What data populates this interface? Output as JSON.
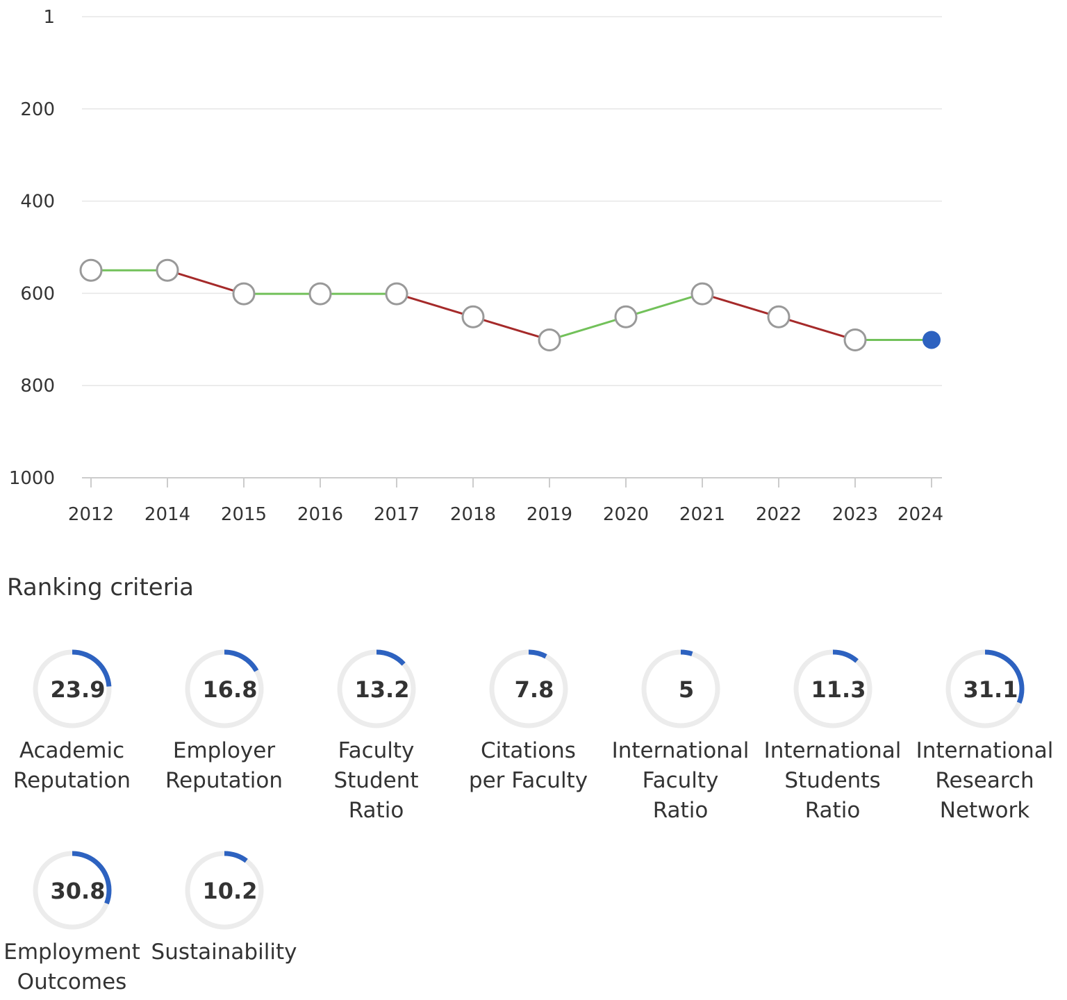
{
  "chart_data": [
    {
      "type": "line",
      "title": "",
      "xlabel": "",
      "ylabel": "",
      "y_axis_inverted": true,
      "ylim": [
        1,
        1000
      ],
      "y_ticks": [
        "1",
        "200",
        "400",
        "600",
        "800",
        "1000"
      ],
      "y_tick_values": [
        1,
        200,
        400,
        600,
        800,
        1000
      ],
      "categories": [
        "2012",
        "2014",
        "2015",
        "2016",
        "2017",
        "2018",
        "2019",
        "2020",
        "2021",
        "2022",
        "2023",
        "2024"
      ],
      "series": [
        {
          "values": [
            550,
            550,
            601,
            601,
            601,
            651,
            701,
            651,
            601,
            651,
            701,
            701
          ]
        }
      ],
      "grid": true,
      "colors": {
        "worse": "#a52a2a",
        "better_or_same": "#72c15a",
        "current_point": "#2d62c0",
        "point_fill": "#ffffff",
        "point_stroke": "#999999",
        "grid": "#e6e6e6",
        "axis": "#cccccc"
      }
    },
    {
      "type": "donut",
      "title": "Ranking criteria",
      "max": 100,
      "items": [
        {
          "value": "23.9",
          "label": "Academic Reputation",
          "label_lines": [
            "Academic",
            "Reputation"
          ]
        },
        {
          "value": "16.8",
          "label": "Employer Reputation",
          "label_lines": [
            "Employer",
            "Reputation"
          ]
        },
        {
          "value": "13.2",
          "label": "Faculty Student Ratio",
          "label_lines": [
            "Faculty",
            "Student",
            "Ratio"
          ]
        },
        {
          "value": "7.8",
          "label": "Citations per Faculty",
          "label_lines": [
            "Citations",
            "per Faculty"
          ]
        },
        {
          "value": "5",
          "label": "International Faculty Ratio",
          "label_lines": [
            "International",
            "Faculty",
            "Ratio"
          ]
        },
        {
          "value": "11.3",
          "label": "International Students Ratio",
          "label_lines": [
            "International",
            "Students",
            "Ratio"
          ]
        },
        {
          "value": "31.1",
          "label": "International Research Network",
          "label_lines": [
            "International",
            "Research",
            "Network"
          ]
        },
        {
          "value": "30.8",
          "label": "Employment Outcomes",
          "label_lines": [
            "Employment",
            "Outcomes"
          ]
        },
        {
          "value": "10.2",
          "label": "Sustainability",
          "label_lines": [
            "Sustainability"
          ]
        }
      ],
      "colors": {
        "track": "#ececec",
        "arc": "#2d62c0"
      }
    }
  ]
}
